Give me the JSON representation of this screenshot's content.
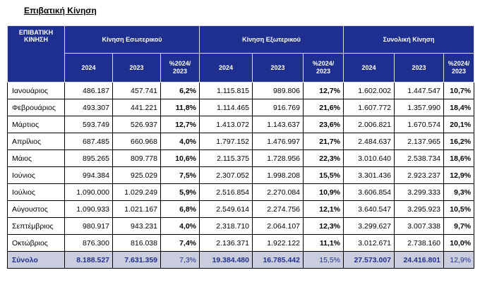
{
  "title": "Επιβατική Κίνηση",
  "header": {
    "row_label": "ΕΠΙΒΑΤΙΚΗ ΚΙΝΗΣΗ",
    "groups": [
      "Κίνηση Εσωτερικού",
      "Κίνηση Εξωτερικού",
      "Συνολική Κίνηση"
    ],
    "subcols": [
      "2024",
      "2023",
      "%2024/ 2023"
    ]
  },
  "rows": [
    {
      "month": "Ιανουάριος",
      "c": [
        "486.187",
        "457.741",
        "6,2%",
        "1.115.815",
        "989.806",
        "12,7%",
        "1.602.002",
        "1.447.547",
        "10,7%"
      ]
    },
    {
      "month": "Φεβρουάριος",
      "c": [
        "493.307",
        "441.221",
        "11,8%",
        "1.114.465",
        "916.769",
        "21,6%",
        "1.607.772",
        "1.357.990",
        "18,4%"
      ]
    },
    {
      "month": "Μάρτιος",
      "c": [
        "593.749",
        "526.937",
        "12,7%",
        "1.413.072",
        "1.143.637",
        "23,6%",
        "2.006.821",
        "1.670.574",
        "20,1%"
      ]
    },
    {
      "month": "Απρίλιος",
      "c": [
        "687.485",
        "660.968",
        "4,0%",
        "1.797.152",
        "1.476.997",
        "21,7%",
        "2.484.637",
        "2.137.965",
        "16,2%"
      ]
    },
    {
      "month": "Μάιος",
      "c": [
        "895.265",
        "809.778",
        "10,6%",
        "2.115.375",
        "1.728.956",
        "22,3%",
        "3.010.640",
        "2.538.734",
        "18,6%"
      ]
    },
    {
      "month": "Ιούνιος",
      "c": [
        "994.384",
        "925.029",
        "7,5%",
        "2.307.052",
        "1.998.208",
        "15,5%",
        "3.301.436",
        "2.923.237",
        "12,9%"
      ]
    },
    {
      "month": "Ιούλιος",
      "c": [
        "1.090.000",
        "1.029.249",
        "5,9%",
        "2.516.854",
        "2.270.084",
        "10,9%",
        "3.606.854",
        "3.299.333",
        "9,3%"
      ]
    },
    {
      "month": "Αύγουστος",
      "c": [
        "1.090.933",
        "1.021.167",
        "6,8%",
        "2.549.614",
        "2.274.756",
        "12,1%",
        "3.640.547",
        "3.295.923",
        "10,5%"
      ]
    },
    {
      "month": "Σεπτέμβριος",
      "c": [
        "980.917",
        "943.231",
        "4,0%",
        "2.318.710",
        "2.064.107",
        "12,3%",
        "3.299.627",
        "3.007.338",
        "9,7%"
      ]
    },
    {
      "month": "Οκτώβριος",
      "c": [
        "876.300",
        "816.038",
        "7,4%",
        "2.136.371",
        "1.922.122",
        "11,1%",
        "3.012.671",
        "2.738.160",
        "10,0%"
      ]
    }
  ],
  "total": {
    "month": "Σύνολο",
    "c": [
      "8.188.527",
      "7.631.359",
      "7,3%",
      "19.384.480",
      "16.785.442",
      "15,5%",
      "27.573.007",
      "24.416.801",
      "12,9%"
    ]
  },
  "colors": {
    "header_bg": "#1f2f8f",
    "header_text": "#ffffff",
    "total_bg": "#c9cddd",
    "total_text": "#1f2f8f"
  }
}
